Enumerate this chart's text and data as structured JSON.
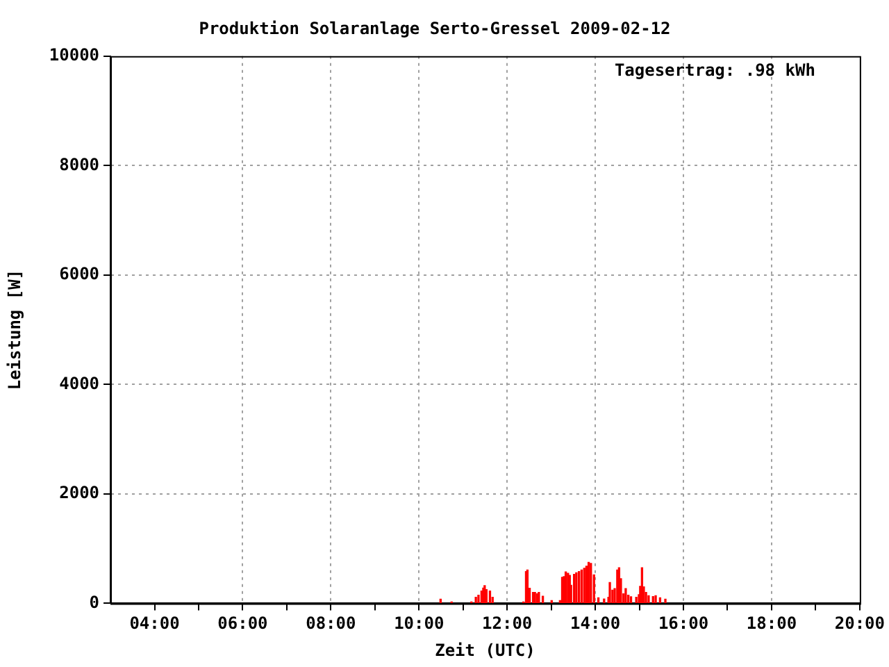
{
  "chart_data": {
    "type": "bar",
    "title": "Produktion Solaranlage Serto-Gressel 2009-02-12",
    "xlabel": "Zeit (UTC)",
    "ylabel": "Leistung [W]",
    "annotations": [
      "Tagesertrag: .98 kWh"
    ],
    "x": [
      10.49,
      10.74,
      11.19,
      11.29,
      11.35,
      11.42,
      11.46,
      11.49,
      11.53,
      11.61,
      11.67,
      12.37,
      12.43,
      12.46,
      12.51,
      12.59,
      12.63,
      12.68,
      12.72,
      12.81,
      13.01,
      13.2,
      13.25,
      13.29,
      13.33,
      13.38,
      13.42,
      13.45,
      13.52,
      13.57,
      13.63,
      13.69,
      13.75,
      13.8,
      13.85,
      13.9,
      13.97,
      14.07,
      14.2,
      14.3,
      14.33,
      14.39,
      14.44,
      14.5,
      14.54,
      14.58,
      14.64,
      14.69,
      14.75,
      14.81,
      14.93,
      14.99,
      15.02,
      15.06,
      15.1,
      15.15,
      15.21,
      15.31,
      15.37,
      15.47,
      15.59
    ],
    "values": [
      75,
      25,
      25,
      110,
      150,
      225,
      280,
      325,
      250,
      225,
      110,
      25,
      580,
      610,
      275,
      200,
      200,
      175,
      200,
      130,
      50,
      50,
      475,
      490,
      575,
      550,
      510,
      330,
      530,
      560,
      580,
      610,
      640,
      680,
      750,
      730,
      520,
      100,
      80,
      110,
      380,
      240,
      270,
      610,
      650,
      450,
      175,
      270,
      150,
      120,
      110,
      160,
      310,
      650,
      300,
      200,
      140,
      125,
      140,
      100,
      75
    ],
    "color": "#ff0000",
    "xlim": [
      3,
      20
    ],
    "xticks": [
      {
        "value": 4,
        "label": "04:00"
      },
      {
        "value": 5,
        "label": null
      },
      {
        "value": 6,
        "label": "06:00"
      },
      {
        "value": 7,
        "label": null
      },
      {
        "value": 8,
        "label": "08:00"
      },
      {
        "value": 9,
        "label": null
      },
      {
        "value": 10,
        "label": "10:00"
      },
      {
        "value": 11,
        "label": null
      },
      {
        "value": 12,
        "label": "12:00"
      },
      {
        "value": 13,
        "label": null
      },
      {
        "value": 14,
        "label": "14:00"
      },
      {
        "value": 15,
        "label": null
      },
      {
        "value": 16,
        "label": "16:00"
      },
      {
        "value": 17,
        "label": null
      },
      {
        "value": 18,
        "label": "18:00"
      },
      {
        "value": 19,
        "label": null
      },
      {
        "value": 20,
        "label": "20:00"
      }
    ],
    "ylim": [
      0,
      10000
    ],
    "yticks": [
      0,
      2000,
      4000,
      6000,
      8000,
      10000
    ],
    "grid": true
  }
}
